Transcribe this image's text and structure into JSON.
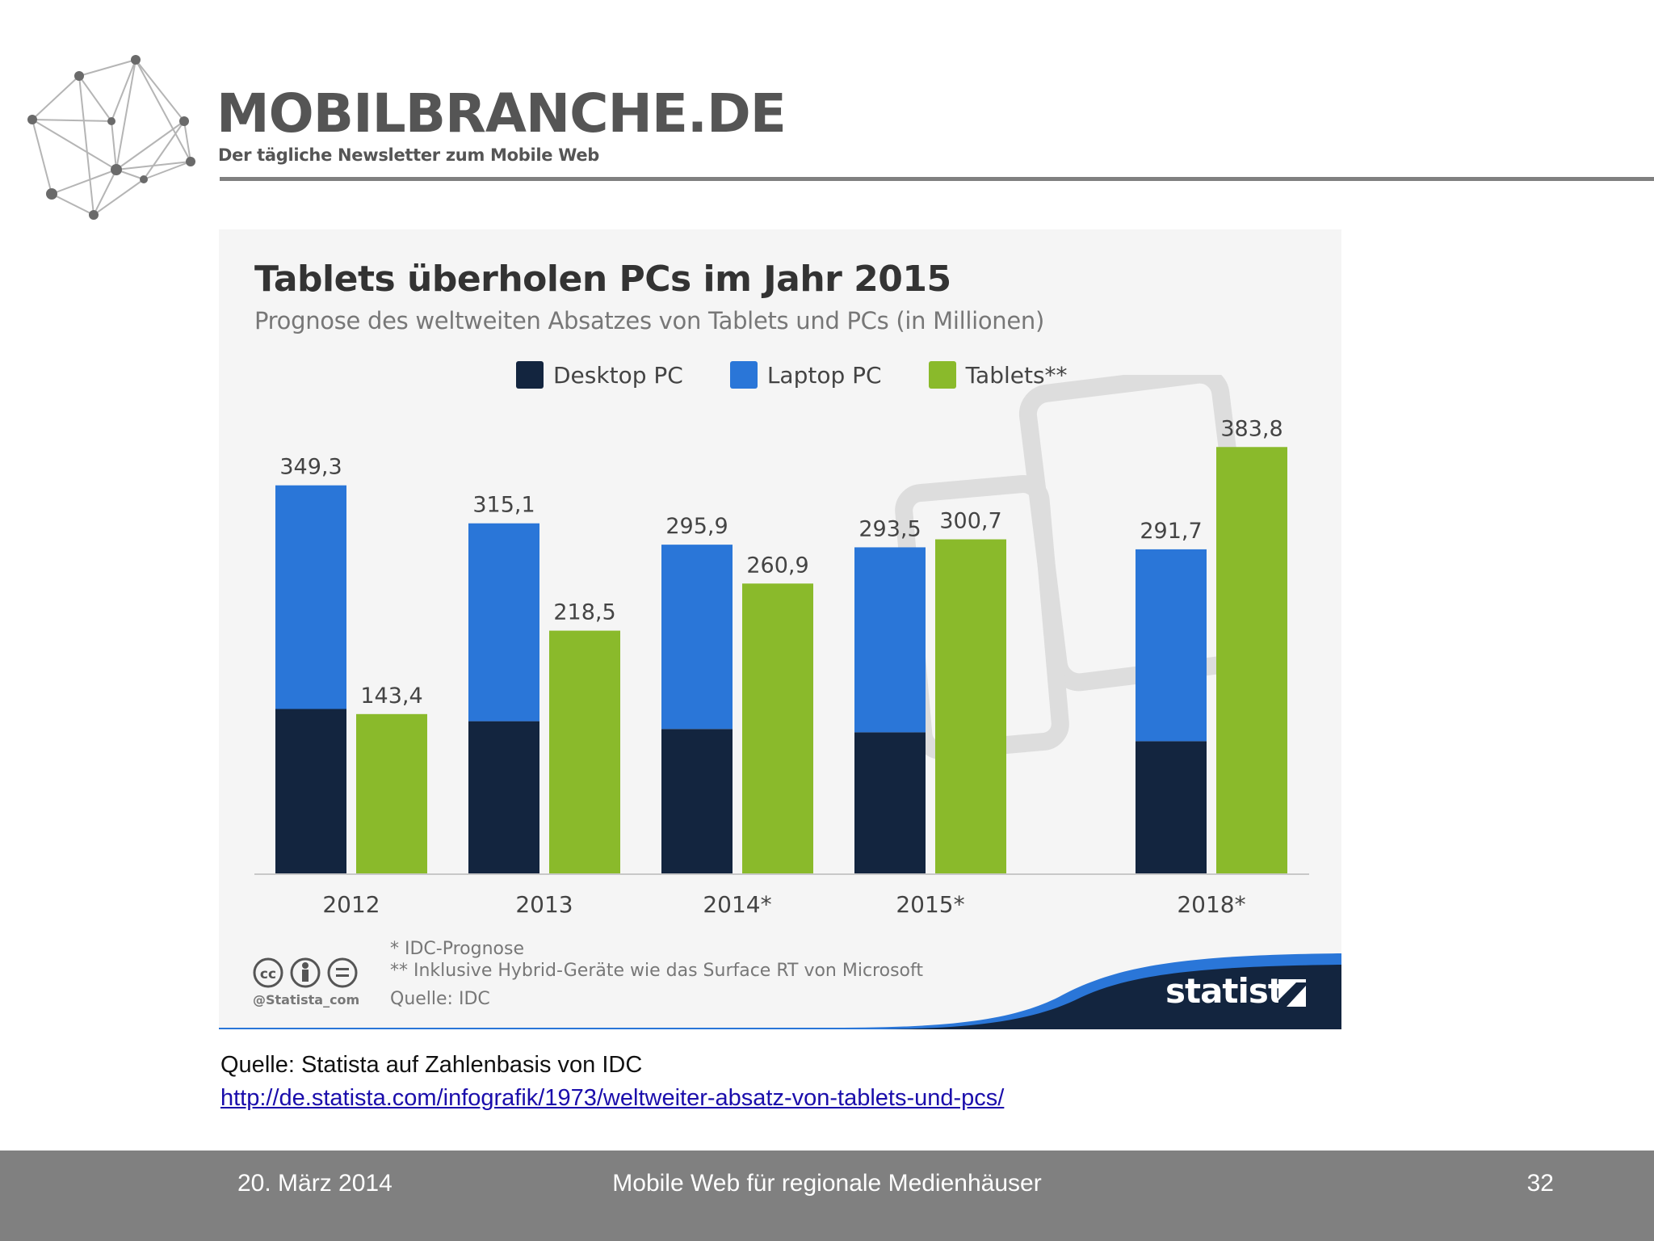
{
  "header": {
    "brand_name": "MOBILBRANCHE.DE",
    "tagline": "Der tägliche Newsletter zum Mobile Web",
    "logo_icon": "network-graph-icon"
  },
  "chart_data": {
    "type": "bar",
    "title": "Tablets überholen PCs im Jahr 2015",
    "subtitle": "Prognose des weltweiten Absatzes von Tablets und PCs (in Millionen)",
    "categories": [
      "2012",
      "2013",
      "2014*",
      "2015*",
      "2018*"
    ],
    "series": [
      {
        "name": "Desktop PC",
        "color": "#13253f",
        "values": [
          148,
          137,
          130,
          127,
          119
        ],
        "stack": "pc"
      },
      {
        "name": "Laptop PC",
        "color": "#2a76d8",
        "values": [
          201.3,
          178.1,
          165.9,
          166.5,
          172.7
        ],
        "stack": "pc"
      },
      {
        "name": "Tablets**",
        "color": "#8aba2b",
        "values": [
          143.4,
          218.5,
          260.9,
          300.7,
          383.8
        ],
        "stack": "tablet"
      }
    ],
    "pc_total_labels": [
      "349,3",
      "315,1",
      "295,9",
      "293,5",
      "291,7"
    ],
    "tablet_labels": [
      "143,4",
      "218,5",
      "260,9",
      "300,7",
      "383,8"
    ],
    "ylim": [
      0,
      400
    ],
    "grid": false,
    "legend": "top",
    "footnotes": [
      "* IDC-Prognose",
      "** Inklusive Hybrid-Geräte wie das Surface RT von Microsoft",
      "Quelle: IDC"
    ],
    "handle": "@Statista_com",
    "brand": "statista"
  },
  "source": {
    "text": "Quelle: Statista auf Zahlenbasis von IDC",
    "link": "http://de.statista.com/infografik/1973/weltweiter-absatz-von-tablets-und-pcs/"
  },
  "footer": {
    "date": "20. März 2014",
    "title": "Mobile Web für regionale Medienhäuser",
    "page": "32"
  }
}
